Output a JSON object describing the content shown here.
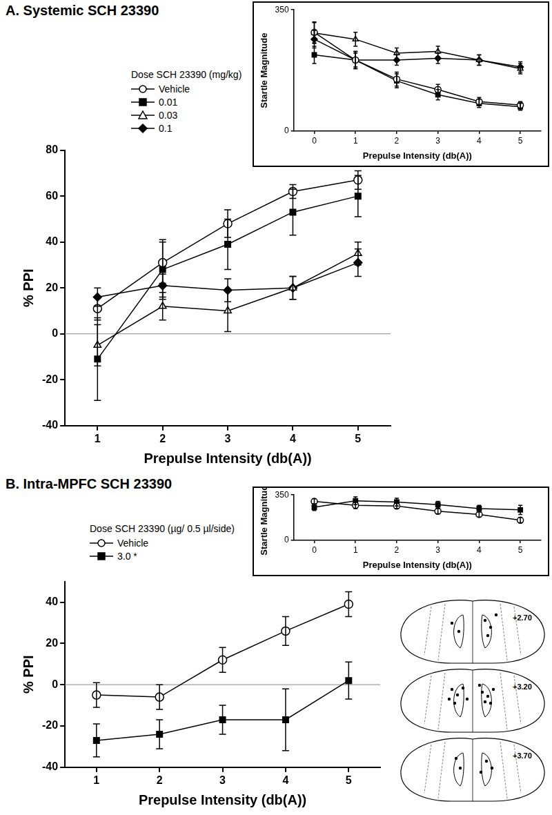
{
  "chart_data": [
    {
      "type": "line",
      "title": "A.  Systemic SCH 23390",
      "legend_title": "Dose SCH 23390 (mg/kg)",
      "legend": "upper left",
      "x_label": "Prepulse Intensity (db(A))",
      "y_label": "% PPI",
      "x": [
        1,
        2,
        3,
        4,
        5
      ],
      "xlim": [
        0.5,
        5.5
      ],
      "xticks": [
        1,
        2,
        3,
        4,
        5
      ],
      "ylim": [
        -40,
        80
      ],
      "yticks": [
        -40,
        -20,
        0,
        20,
        40,
        60,
        80
      ],
      "grid": false,
      "series": [
        {
          "name": "Vehicle",
          "color": "#000000",
          "marker": "circle-open",
          "values": [
            11,
            31,
            48,
            62,
            67
          ],
          "errors": [
            5,
            9,
            6,
            3,
            4
          ]
        },
        {
          "name": "0.01",
          "color": "#000000",
          "marker": "square",
          "values": [
            -11,
            28,
            39,
            53,
            60
          ],
          "errors": [
            18,
            13,
            11,
            10,
            9
          ]
        },
        {
          "name": "0.03",
          "color": "#000000",
          "marker": "triangle-open",
          "values": [
            -5,
            12,
            10,
            20,
            35
          ],
          "errors": [
            9,
            6,
            9,
            5,
            5
          ]
        },
        {
          "name": "0.1",
          "color": "#000000",
          "marker": "diamond",
          "values": [
            16,
            21,
            19,
            20,
            31
          ],
          "errors": [
            4,
            5,
            5,
            5,
            6
          ]
        }
      ]
    },
    {
      "type": "line",
      "x_label": "Prepulse Intensity (db(A))",
      "y_label": "Startle Magnitude",
      "x": [
        0,
        1,
        2,
        3,
        4,
        5
      ],
      "xlim": [
        -0.5,
        5.5
      ],
      "xticks": [
        0,
        1,
        2,
        3,
        4,
        5
      ],
      "ylim": [
        0,
        350
      ],
      "yticks": [
        0,
        350
      ],
      "grid": false,
      "series": [
        {
          "color": "#000000",
          "marker": "circle-open",
          "values": [
            285,
            205,
            150,
            120,
            85,
            75
          ],
          "errors": [
            30,
            25,
            20,
            15,
            12,
            10
          ]
        },
        {
          "color": "#000000",
          "marker": "square",
          "values": [
            220,
            205,
            145,
            105,
            80,
            70
          ],
          "errors": [
            25,
            25,
            20,
            15,
            12,
            10
          ]
        },
        {
          "color": "#000000",
          "marker": "triangle-open",
          "values": [
            283,
            265,
            225,
            230,
            205,
            180
          ],
          "errors": [
            30,
            20,
            15,
            15,
            15,
            15
          ]
        },
        {
          "color": "#000000",
          "marker": "diamond",
          "values": [
            265,
            205,
            205,
            210,
            205,
            185
          ],
          "errors": [
            25,
            20,
            15,
            15,
            15,
            15
          ]
        }
      ]
    },
    {
      "type": "line",
      "title": "B.  Intra-MPFC SCH 23390",
      "legend_title": "Dose SCH 23390 (µg/ 0.5 µl/side)",
      "legend": "upper left",
      "x_label": "Prepulse Intensity (db(A))",
      "y_label": "% PPI",
      "x": [
        1,
        2,
        3,
        4,
        5
      ],
      "xlim": [
        0.5,
        5.5
      ],
      "xticks": [
        1,
        2,
        3,
        4,
        5
      ],
      "ylim": [
        -40,
        50
      ],
      "yticks": [
        -40,
        -20,
        0,
        20,
        40
      ],
      "grid": false,
      "series": [
        {
          "name": "Vehicle",
          "color": "#000000",
          "marker": "circle-open",
          "values": [
            -5,
            -6,
            12,
            26,
            39
          ],
          "errors": [
            6,
            6,
            6,
            7,
            6
          ]
        },
        {
          "name": "3.0 *",
          "color": "#000000",
          "marker": "square",
          "values": [
            -27,
            -24,
            -17,
            -17,
            2
          ],
          "errors": [
            8,
            7,
            7,
            15,
            9
          ]
        }
      ]
    },
    {
      "type": "line",
      "x_label": "Prepulse Intensity (db(A))",
      "y_label": "Startle Magnitude",
      "x": [
        0,
        1,
        2,
        3,
        4,
        5
      ],
      "xlim": [
        -0.5,
        5.5
      ],
      "xticks": [
        0,
        1,
        2,
        3,
        4,
        5
      ],
      "ylim": [
        0,
        350
      ],
      "yticks": [
        0,
        350
      ],
      "grid": false,
      "series": [
        {
          "color": "#000000",
          "marker": "circle-open",
          "values": [
            300,
            270,
            265,
            225,
            200,
            155
          ],
          "errors": [
            20,
            25,
            20,
            20,
            20,
            20
          ]
        },
        {
          "color": "#000000",
          "marker": "square",
          "values": [
            255,
            305,
            295,
            275,
            245,
            235
          ],
          "errors": [
            25,
            30,
            30,
            25,
            25,
            35
          ]
        }
      ]
    }
  ],
  "atlas": {
    "sections": [
      "+2.70",
      "+3.20",
      "+3.70"
    ]
  }
}
